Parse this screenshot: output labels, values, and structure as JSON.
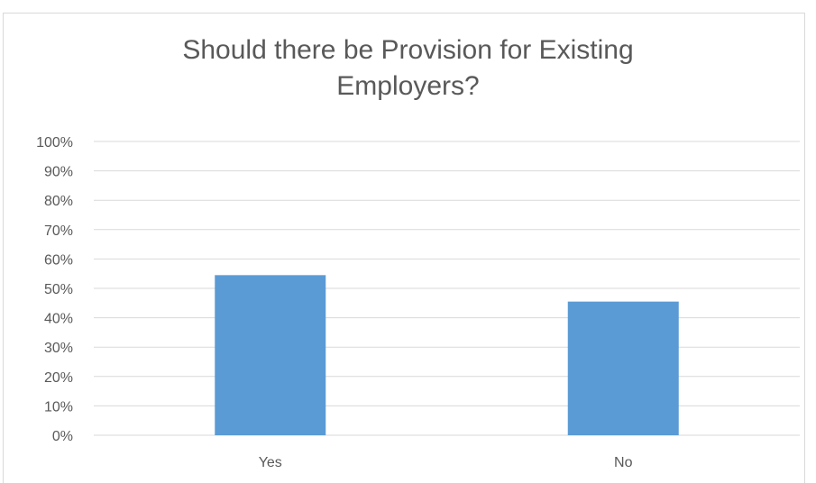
{
  "chart_data": {
    "type": "bar",
    "title_lines": [
      "Should there be Provision for Existing",
      "Employers?"
    ],
    "categories": [
      "Yes",
      "No"
    ],
    "values": [
      0.545,
      0.455
    ],
    "y_ticks": [
      "0%",
      "10%",
      "20%",
      "30%",
      "40%",
      "50%",
      "60%",
      "70%",
      "80%",
      "90%",
      "100%"
    ],
    "ylim": [
      0,
      1
    ],
    "grid": true,
    "xlabel": "",
    "ylabel": "",
    "bar_color": "#5b9bd5",
    "grid_color": "#d9d9d9"
  }
}
